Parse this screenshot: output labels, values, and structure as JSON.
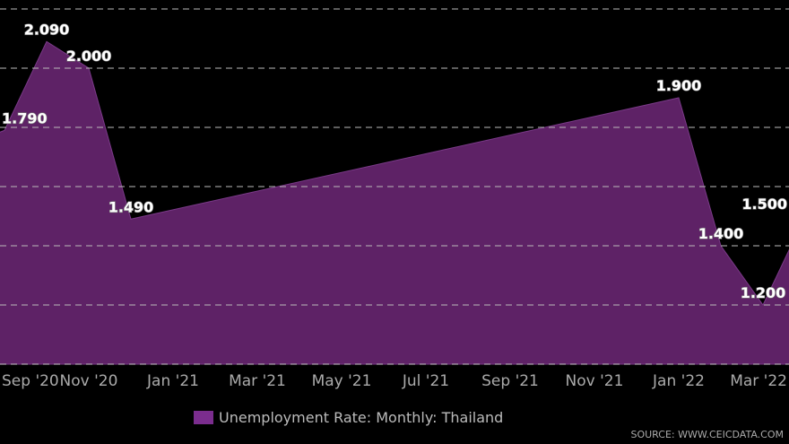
{
  "chart_data": {
    "type": "area",
    "title": "",
    "xlabel": "",
    "ylabel": "",
    "ylim": [
      1.0,
      2.2
    ],
    "grid": true,
    "y_gridlines": [
      1.0,
      1.2,
      1.4,
      1.6,
      1.8,
      2.0,
      2.2
    ],
    "x_ticks": [
      "Sep '20",
      "Nov '20",
      "Jan '21",
      "Mar '21",
      "May '21",
      "Jul '21",
      "Sep '21",
      "Nov '21",
      "Jan '22",
      "Mar '22"
    ],
    "series": [
      {
        "name": "Unemployment Rate: Monthly: Thailand",
        "color": "#5e2266",
        "points": [
          {
            "x": "Sep '20",
            "y": 1.79,
            "label": "1.790"
          },
          {
            "x": "Oct '20",
            "y": 2.09,
            "label": "2.090"
          },
          {
            "x": "Nov '20",
            "y": 2.0,
            "label": "2.000"
          },
          {
            "x": "Dec '20",
            "y": 1.49,
            "label": "1.490"
          },
          {
            "x": "Jan '22",
            "y": 1.9,
            "label": "1.900"
          },
          {
            "x": "Feb '22",
            "y": 1.4,
            "label": "1.400"
          },
          {
            "x": "Mar '22",
            "y": 1.2,
            "label": "1.200"
          },
          {
            "x": "Apr '22",
            "y": 1.5,
            "label": "1.500"
          }
        ]
      }
    ],
    "legend": {
      "position": "bottom",
      "label": "Unemployment Rate: Monthly: Thailand",
      "swatch_color": "#7b2d8e"
    },
    "source": "SOURCE: WWW.CEICDATA.COM"
  }
}
